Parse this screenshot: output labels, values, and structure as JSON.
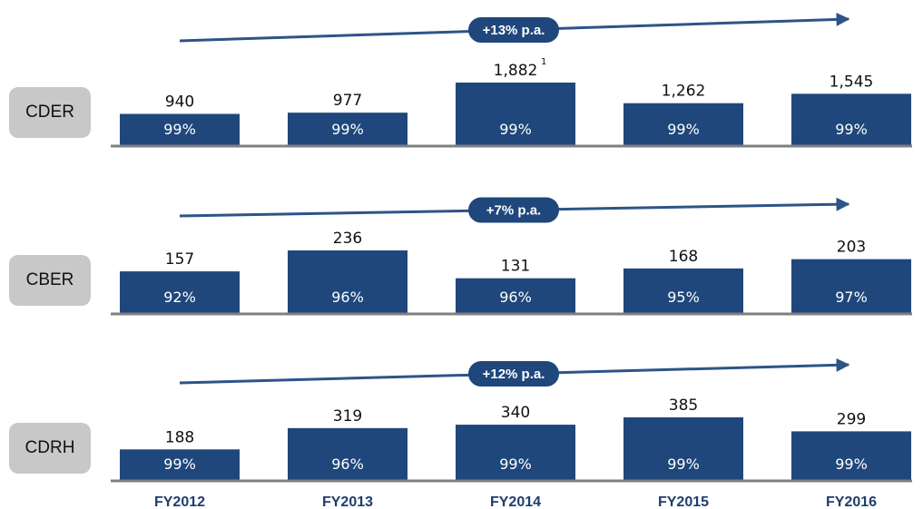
{
  "chart_data": {
    "type": "bar",
    "categories": [
      "FY2012",
      "FY2013",
      "FY2014",
      "FY2015",
      "FY2016"
    ],
    "colors": {
      "bar": "#1f477c",
      "axis": "#7f7f7f",
      "arrow": "#2d5487",
      "label": "#1f3d6e",
      "row_label_bg": "#c8c8c8"
    },
    "panels": [
      {
        "name": "CDER",
        "values": [
          940,
          977,
          1882,
          1262,
          1545
        ],
        "value_labels": [
          "940",
          "977",
          "1,882",
          "1,262",
          "1,545"
        ],
        "superscripts": [
          "",
          "",
          "1",
          "",
          ""
        ],
        "percent_labels": [
          "99%",
          "99%",
          "99%",
          "99%",
          "99%"
        ],
        "growth": "+13% p.a."
      },
      {
        "name": "CBER",
        "values": [
          157,
          236,
          131,
          168,
          203
        ],
        "value_labels": [
          "157",
          "236",
          "131",
          "168",
          "203"
        ],
        "superscripts": [
          "",
          "",
          "",
          "",
          ""
        ],
        "percent_labels": [
          "92%",
          "96%",
          "96%",
          "95%",
          "97%"
        ],
        "growth": "+7% p.a."
      },
      {
        "name": "CDRH",
        "values": [
          188,
          319,
          340,
          385,
          299
        ],
        "value_labels": [
          "188",
          "319",
          "340",
          "385",
          "299"
        ],
        "superscripts": [
          "",
          "",
          "",
          "",
          ""
        ],
        "percent_labels": [
          "99%",
          "96%",
          "99%",
          "99%",
          "99%"
        ],
        "growth": "+12% p.a."
      }
    ]
  }
}
